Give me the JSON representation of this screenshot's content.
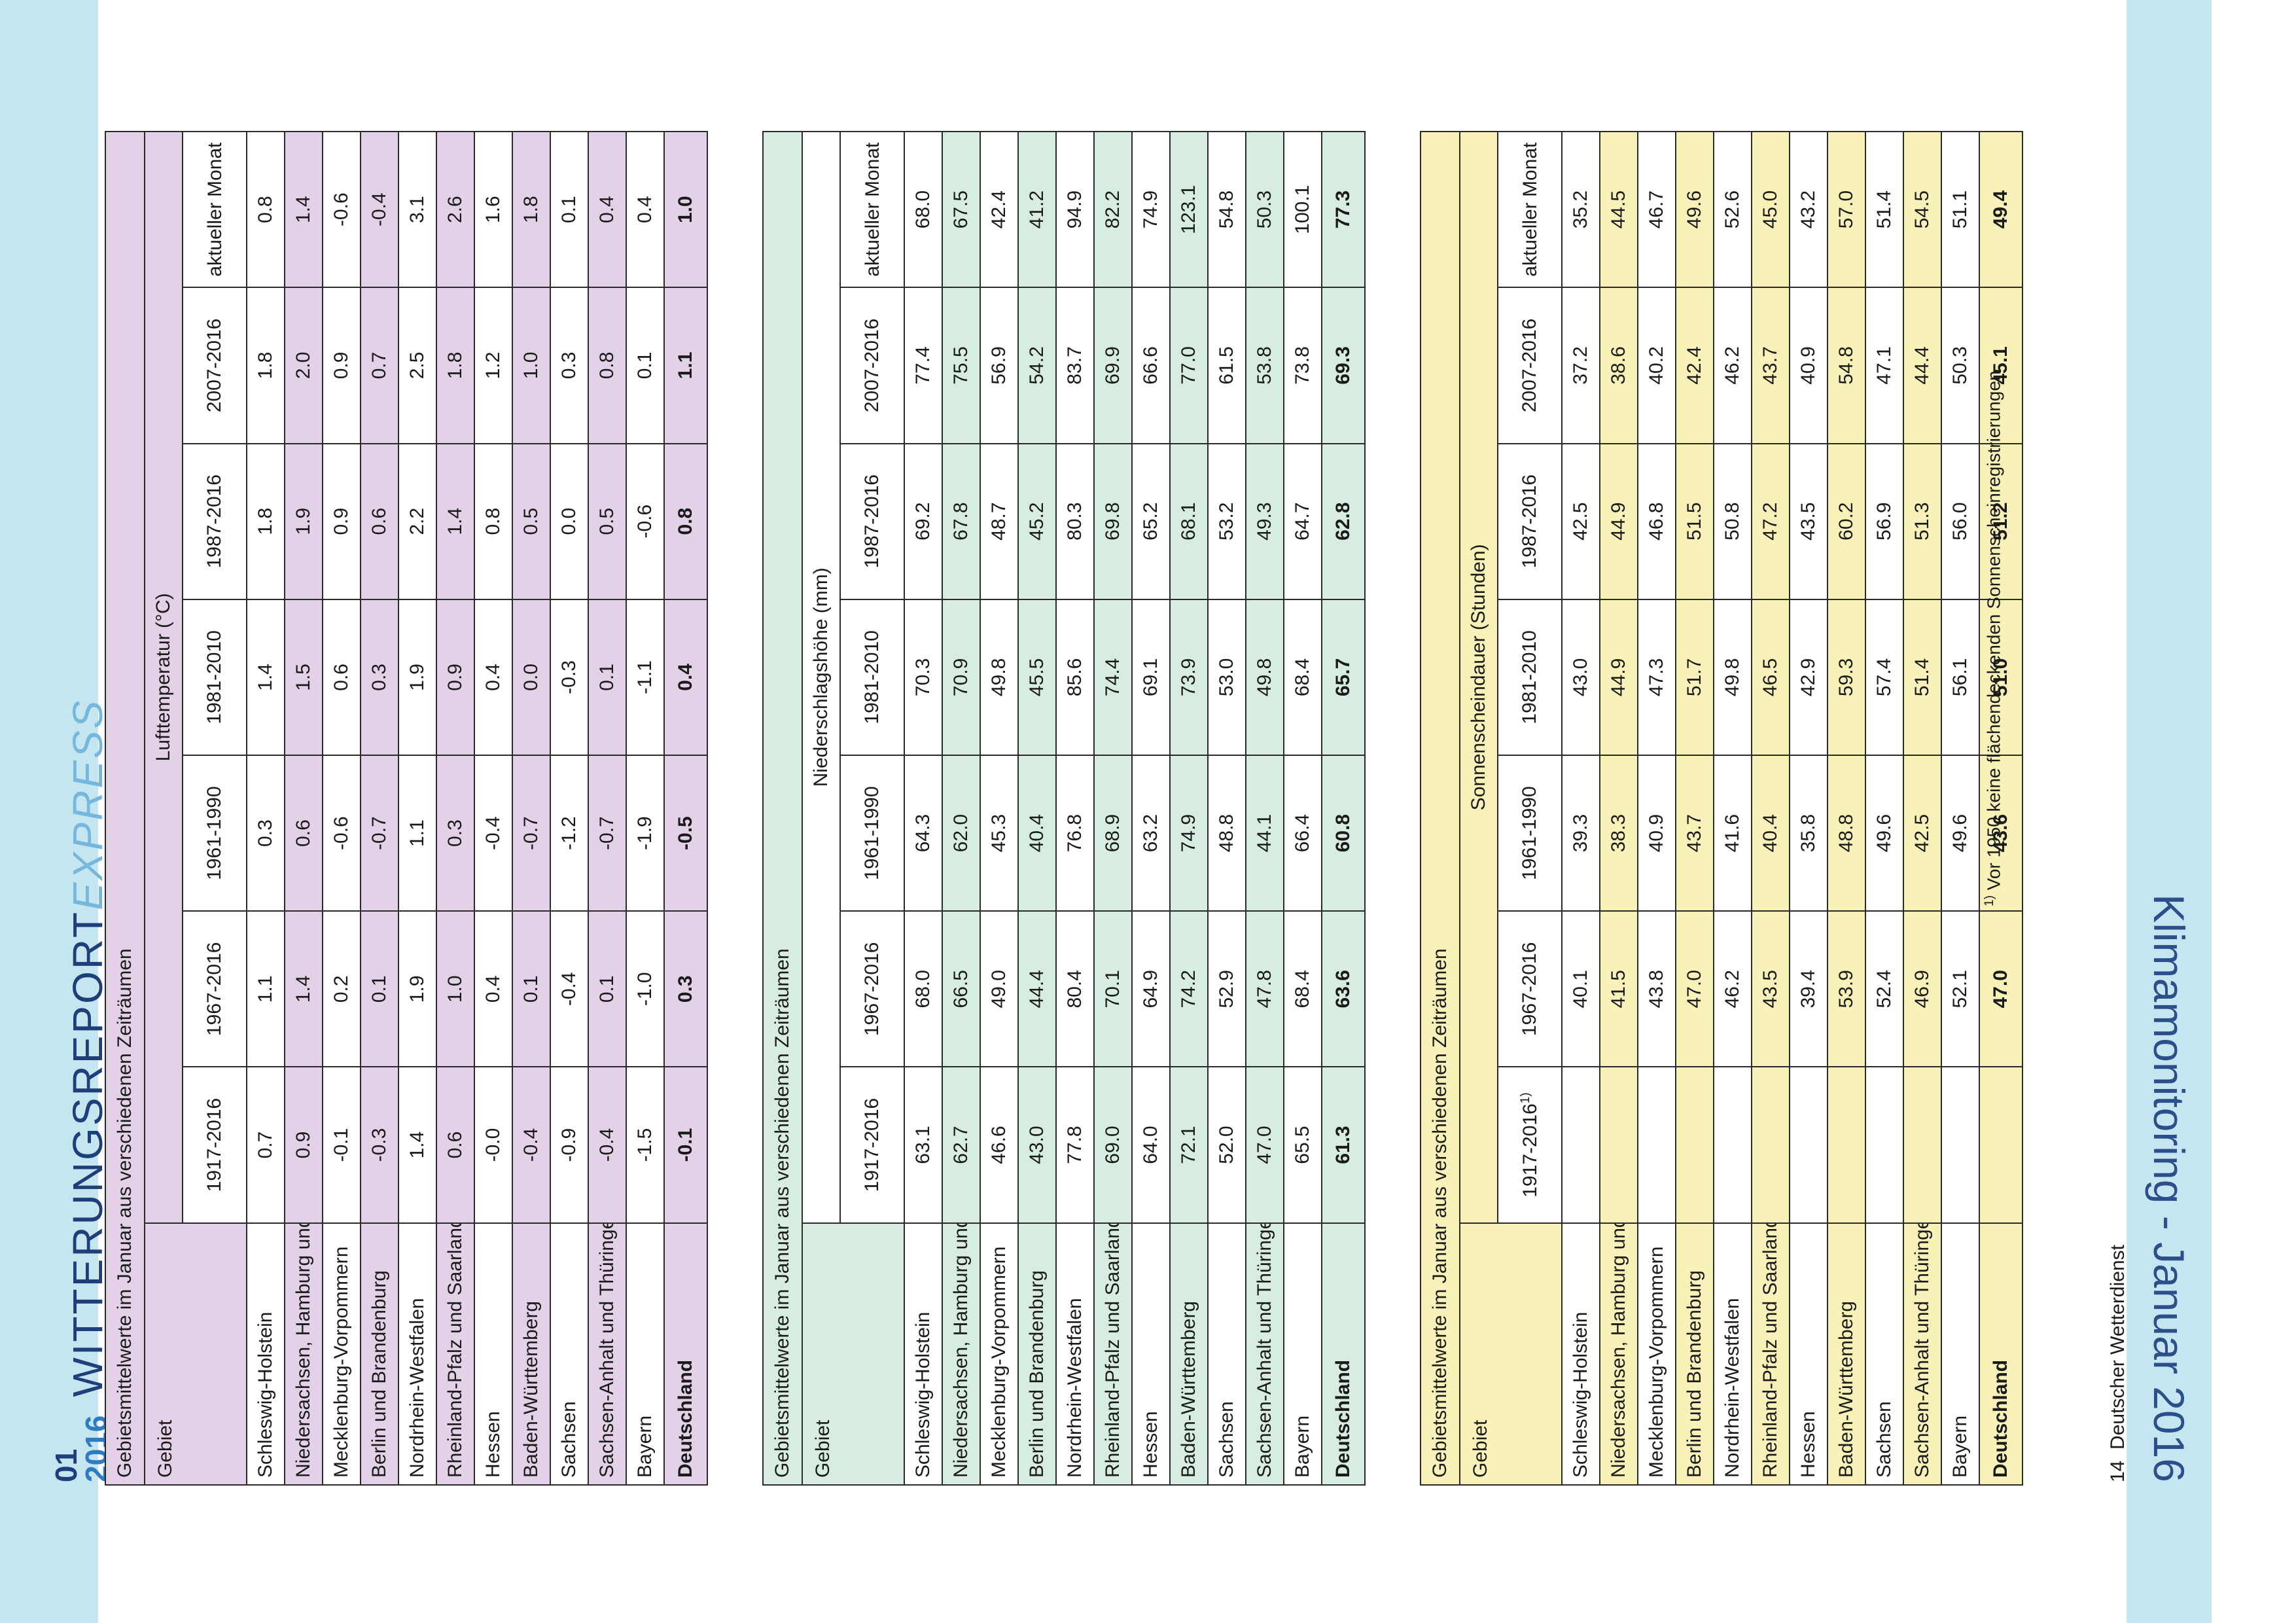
{
  "header": {
    "issue_num": "01",
    "year": "2016",
    "title_main": "WITTERUNGSREPORT",
    "title_accent": "EXPRESS"
  },
  "side_title": "Klimamonitoring - Januar 2016",
  "tables": [
    {
      "caption": "Gebietsmittelwerte im Januar aus verschiedenen Zeiträumen",
      "param": "Lufttemperatur (°C)",
      "gebiet": "Gebiet",
      "columns": [
        "1917-2016",
        "1967-2016",
        "1961-1990",
        "1981-2010",
        "1987-2016",
        "2007-2016",
        "aktueller Monat"
      ],
      "rows": [
        {
          "name": "Schleswig-Holstein",
          "values": [
            "0.7",
            "1.1",
            "0.3",
            "1.4",
            "1.8",
            "1.8",
            "0.8"
          ]
        },
        {
          "name": "Niedersachsen, Hamburg und Bremen",
          "values": [
            "0.9",
            "1.4",
            "0.6",
            "1.5",
            "1.9",
            "2.0",
            "1.4"
          ]
        },
        {
          "name": "Mecklenburg-Vorpommern",
          "values": [
            "-0.1",
            "0.2",
            "-0.6",
            "0.6",
            "0.9",
            "0.9",
            "-0.6"
          ]
        },
        {
          "name": "Berlin und Brandenburg",
          "values": [
            "-0.3",
            "0.1",
            "-0.7",
            "0.3",
            "0.6",
            "0.7",
            "-0.4"
          ]
        },
        {
          "name": "Nordrhein-Westfalen",
          "values": [
            "1.4",
            "1.9",
            "1.1",
            "1.9",
            "2.2",
            "2.5",
            "3.1"
          ]
        },
        {
          "name": "Rheinland-Pfalz und Saarland",
          "values": [
            "0.6",
            "1.0",
            "0.3",
            "0.9",
            "1.4",
            "1.8",
            "2.6"
          ]
        },
        {
          "name": "Hessen",
          "values": [
            "-0.0",
            "0.4",
            "-0.4",
            "0.4",
            "0.8",
            "1.2",
            "1.6"
          ]
        },
        {
          "name": "Baden-Württemberg",
          "values": [
            "-0.4",
            "0.1",
            "-0.7",
            "0.0",
            "0.5",
            "1.0",
            "1.8"
          ]
        },
        {
          "name": "Sachsen",
          "values": [
            "-0.9",
            "-0.4",
            "-1.2",
            "-0.3",
            "0.0",
            "0.3",
            "0.1"
          ]
        },
        {
          "name": "Sachsen-Anhalt und Thüringen",
          "values": [
            "-0.4",
            "0.1",
            "-0.7",
            "0.1",
            "0.5",
            "0.8",
            "0.4"
          ]
        },
        {
          "name": "Bayern",
          "values": [
            "-1.5",
            "-1.0",
            "-1.9",
            "-1.1",
            "-0.6",
            "0.1",
            "0.4"
          ]
        }
      ],
      "total": {
        "name": "Deutschland",
        "values": [
          "-0.1",
          "0.3",
          "-0.5",
          "0.4",
          "0.8",
          "1.1",
          "1.0"
        ]
      }
    },
    {
      "caption": "Gebietsmittelwerte im Januar aus verschiedenen Zeiträumen",
      "param": "Niederschlagshöhe (mm)",
      "gebiet": "Gebiet",
      "columns": [
        "1917-2016",
        "1967-2016",
        "1961-1990",
        "1981-2010",
        "1987-2016",
        "2007-2016",
        "aktueller Monat"
      ],
      "rows": [
        {
          "name": "Schleswig-Holstein",
          "values": [
            "63.1",
            "68.0",
            "64.3",
            "70.3",
            "69.2",
            "77.4",
            "68.0"
          ]
        },
        {
          "name": "Niedersachsen, Hamburg und Bremen",
          "values": [
            "62.7",
            "66.5",
            "62.0",
            "70.9",
            "67.8",
            "75.5",
            "67.5"
          ]
        },
        {
          "name": "Mecklenburg-Vorpommern",
          "values": [
            "46.6",
            "49.0",
            "45.3",
            "49.8",
            "48.7",
            "56.9",
            "42.4"
          ]
        },
        {
          "name": "Berlin und Brandenburg",
          "values": [
            "43.0",
            "44.4",
            "40.4",
            "45.5",
            "45.2",
            "54.2",
            "41.2"
          ]
        },
        {
          "name": "Nordrhein-Westfalen",
          "values": [
            "77.8",
            "80.4",
            "76.8",
            "85.6",
            "80.3",
            "83.7",
            "94.9"
          ]
        },
        {
          "name": "Rheinland-Pfalz und Saarland",
          "values": [
            "69.0",
            "70.1",
            "68.9",
            "74.4",
            "69.8",
            "69.9",
            "82.2"
          ]
        },
        {
          "name": "Hessen",
          "values": [
            "64.0",
            "64.9",
            "63.2",
            "69.1",
            "65.2",
            "66.6",
            "74.9"
          ]
        },
        {
          "name": "Baden-Württemberg",
          "values": [
            "72.1",
            "74.2",
            "74.9",
            "73.9",
            "68.1",
            "77.0",
            "123.1"
          ]
        },
        {
          "name": "Sachsen",
          "values": [
            "52.0",
            "52.9",
            "48.8",
            "53.0",
            "53.2",
            "61.5",
            "54.8"
          ]
        },
        {
          "name": "Sachsen-Anhalt und Thüringen",
          "values": [
            "47.0",
            "47.8",
            "44.1",
            "49.8",
            "49.3",
            "53.8",
            "50.3"
          ]
        },
        {
          "name": "Bayern",
          "values": [
            "65.5",
            "68.4",
            "66.4",
            "68.4",
            "64.7",
            "73.8",
            "100.1"
          ]
        }
      ],
      "total": {
        "name": "Deutschland",
        "values": [
          "61.3",
          "63.6",
          "60.8",
          "65.7",
          "62.8",
          "69.3",
          "77.3"
        ]
      }
    },
    {
      "caption": "Gebietsmittelwerte im Januar aus verschiedenen Zeiträumen",
      "param": "Sonnenscheindauer (Stunden)",
      "gebiet": "Gebiet",
      "columns": [
        "1917-2016",
        "1967-2016",
        "1961-1990",
        "1981-2010",
        "1987-2016",
        "2007-2016",
        "aktueller Monat"
      ],
      "first_col_sup": "1)",
      "rows": [
        {
          "name": "Schleswig-Holstein",
          "values": [
            "",
            "40.1",
            "39.3",
            "43.0",
            "42.5",
            "37.2",
            "35.2"
          ]
        },
        {
          "name": "Niedersachsen, Hamburg und Bremen",
          "values": [
            "",
            "41.5",
            "38.3",
            "44.9",
            "44.9",
            "38.6",
            "44.5"
          ]
        },
        {
          "name": "Mecklenburg-Vorpommern",
          "values": [
            "",
            "43.8",
            "40.9",
            "47.3",
            "46.8",
            "40.2",
            "46.7"
          ]
        },
        {
          "name": "Berlin und Brandenburg",
          "values": [
            "",
            "47.0",
            "43.7",
            "51.7",
            "51.5",
            "42.4",
            "49.6"
          ]
        },
        {
          "name": "Nordrhein-Westfalen",
          "values": [
            "",
            "46.2",
            "41.6",
            "49.8",
            "50.8",
            "46.2",
            "52.6"
          ]
        },
        {
          "name": "Rheinland-Pfalz und Saarland",
          "values": [
            "",
            "43.5",
            "40.4",
            "46.5",
            "47.2",
            "43.7",
            "45.0"
          ]
        },
        {
          "name": "Hessen",
          "values": [
            "",
            "39.4",
            "35.8",
            "42.9",
            "43.5",
            "40.9",
            "43.2"
          ]
        },
        {
          "name": "Baden-Württemberg",
          "values": [
            "",
            "53.9",
            "48.8",
            "59.3",
            "60.2",
            "54.8",
            "57.0"
          ]
        },
        {
          "name": "Sachsen",
          "values": [
            "",
            "52.4",
            "49.6",
            "57.4",
            "56.9",
            "47.1",
            "51.4"
          ]
        },
        {
          "name": "Sachsen-Anhalt und Thüringen",
          "values": [
            "",
            "46.9",
            "42.5",
            "51.4",
            "51.3",
            "44.4",
            "54.5"
          ]
        },
        {
          "name": "Bayern",
          "values": [
            "",
            "52.1",
            "49.6",
            "56.1",
            "56.0",
            "50.3",
            "51.1"
          ]
        }
      ],
      "total": {
        "name": "Deutschland",
        "values": [
          "",
          "47.0",
          "43.6",
          "51.0",
          "51.2",
          "45.1",
          "49.4"
        ]
      }
    }
  ],
  "footnote": {
    "marker": "1)",
    "text": "Vor 1950 keine flächendeckenden Sonnenscheinregistrierungen."
  },
  "page_footer": {
    "page": "14",
    "org": "Deutscher Wetterdienst"
  },
  "colors": {
    "temperature": "#e3d1e7",
    "precipitation": "#d8ede2",
    "sunshine": "#f8f2b9",
    "band": "#c5e6f0"
  }
}
